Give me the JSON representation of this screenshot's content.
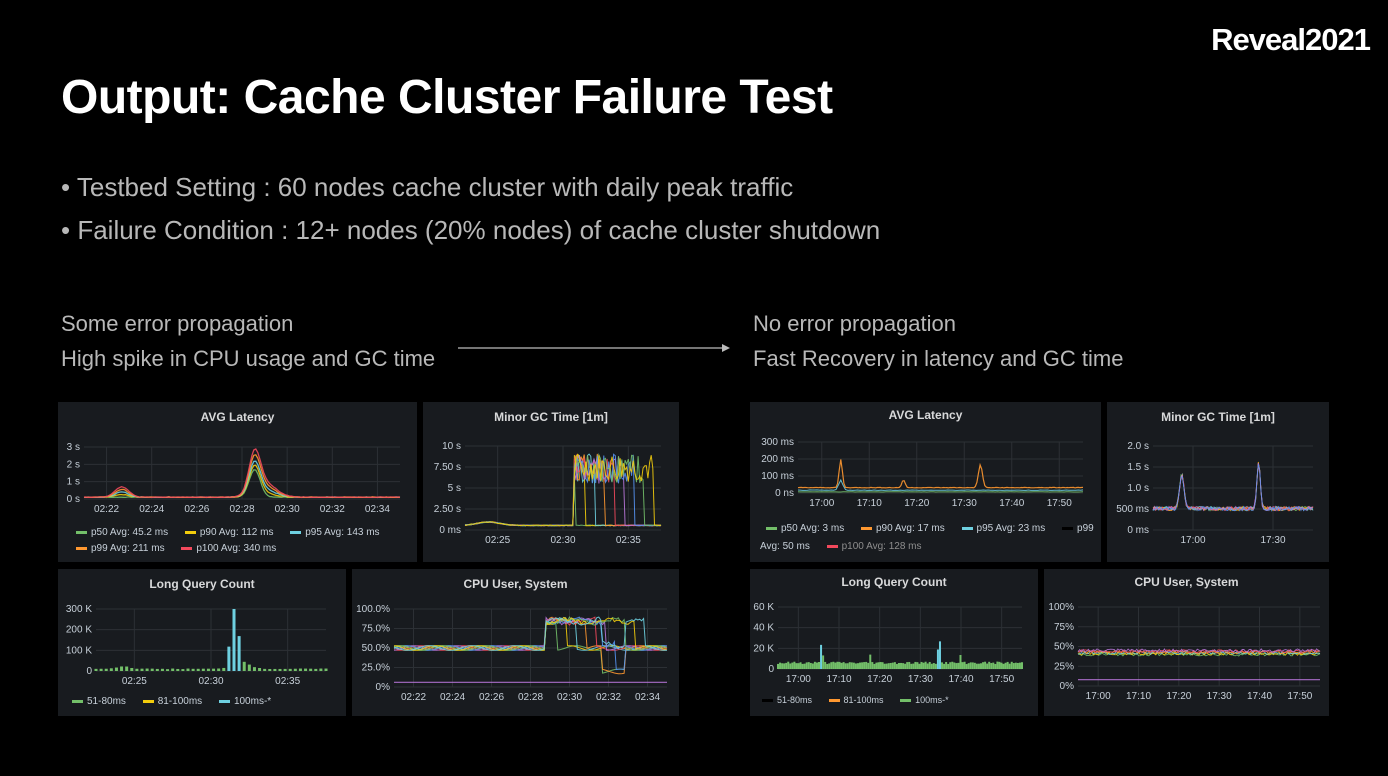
{
  "brand": "Reveal2021",
  "title": "Output: Cache Cluster Failure Test",
  "bullets": [
    "• Testbed Setting : 60 nodes cache cluster with daily peak traffic",
    "• Failure Condition :  12+ nodes (20% nodes) of cache cluster  shutdown"
  ],
  "left_caption": [
    "Some error propagation",
    "High spike in CPU usage and GC time"
  ],
  "right_caption": [
    "No error propagation",
    "Fast Recovery in latency and GC time"
  ],
  "colors": {
    "green": "#73bf69",
    "yellow": "#f2cc0c",
    "blue": "#5794f2",
    "cyan": "#6ed0e0",
    "orange": "#ff9830",
    "red": "#f2495c",
    "purple": "#b877d9",
    "panel": "#181b1f",
    "grid": "#2c3035"
  },
  "left": {
    "avg_latency": {
      "title": "AVG Latency",
      "yticks": [
        "3 s",
        "2 s",
        "1 s",
        "0 s"
      ],
      "xticks": [
        "02:22",
        "02:24",
        "02:26",
        "02:28",
        "02:30",
        "02:32",
        "02:34"
      ],
      "legend": [
        {
          "label": "p50  Avg: 45.2 ms",
          "color": "#73bf69"
        },
        {
          "label": "p90  Avg: 112 ms",
          "color": "#f2cc0c"
        },
        {
          "label": "p95  Avg: 143 ms",
          "color": "#6ed0e0"
        },
        {
          "label": "p99  Avg: 211 ms",
          "color": "#ff9830"
        },
        {
          "label": "p100  Avg: 340 ms",
          "color": "#f2495c"
        }
      ]
    },
    "gc_time": {
      "title": "Minor GC Time [1m]",
      "yticks": [
        "10 s",
        "7.50 s",
        "5 s",
        "2.50 s",
        "0 ms"
      ],
      "xticks": [
        "02:25",
        "02:30",
        "02:35"
      ]
    },
    "long_query": {
      "title": "Long Query Count",
      "yticks": [
        "300 K",
        "200 K",
        "100 K",
        "0"
      ],
      "xticks": [
        "02:25",
        "02:30",
        "02:35"
      ],
      "legend": [
        {
          "label": "51-80ms",
          "color": "#73bf69"
        },
        {
          "label": "81-100ms",
          "color": "#f2cc0c"
        },
        {
          "label": "100ms-*",
          "color": "#6ed0e0"
        }
      ]
    },
    "cpu": {
      "title": "CPU User, System",
      "yticks": [
        "100.0%",
        "75.0%",
        "50.0%",
        "25.0%",
        "0%"
      ],
      "xticks": [
        "02:22",
        "02:24",
        "02:26",
        "02:28",
        "02:30",
        "02:32",
        "02:34"
      ]
    }
  },
  "right": {
    "avg_latency": {
      "title": "AVG Latency",
      "yticks": [
        "300 ms",
        "200 ms",
        "100 ms",
        "0 ns"
      ],
      "xticks": [
        "17:00",
        "17:10",
        "17:20",
        "17:30",
        "17:40",
        "17:50"
      ],
      "legend": [
        {
          "label": "p50  Avg: 3 ms",
          "color": "#73bf69"
        },
        {
          "label": "p90  Avg: 17 ms",
          "color": "#ff9830"
        },
        {
          "label": "p95  Avg: 23 ms",
          "color": "#6ed0e0"
        },
        {
          "label": "p99  Avg: 50 ms",
          "color": "#000000"
        },
        {
          "label": "p100  Avg: 128 ms",
          "color": "#f2495c"
        }
      ]
    },
    "gc_time": {
      "title": "Minor GC Time [1m]",
      "yticks": [
        "2.0 s",
        "1.5 s",
        "1.0 s",
        "500 ms",
        "0 ms"
      ],
      "xticks": [
        "17:00",
        "17:30"
      ]
    },
    "long_query": {
      "title": "Long Query Count",
      "yticks": [
        "60 K",
        "40 K",
        "20 K",
        "0"
      ],
      "xticks": [
        "17:00",
        "17:10",
        "17:20",
        "17:30",
        "17:40",
        "17:50"
      ],
      "legend": [
        {
          "label": "51-80ms",
          "color": "#000000"
        },
        {
          "label": "81-100ms",
          "color": "#ff9830"
        },
        {
          "label": "100ms-*",
          "color": "#73bf69"
        }
      ]
    },
    "cpu": {
      "title": "CPU User, System",
      "yticks": [
        "100%",
        "75%",
        "50%",
        "25%",
        "0%"
      ],
      "xticks": [
        "17:00",
        "17:10",
        "17:20",
        "17:30",
        "17:40",
        "17:50"
      ]
    }
  }
}
